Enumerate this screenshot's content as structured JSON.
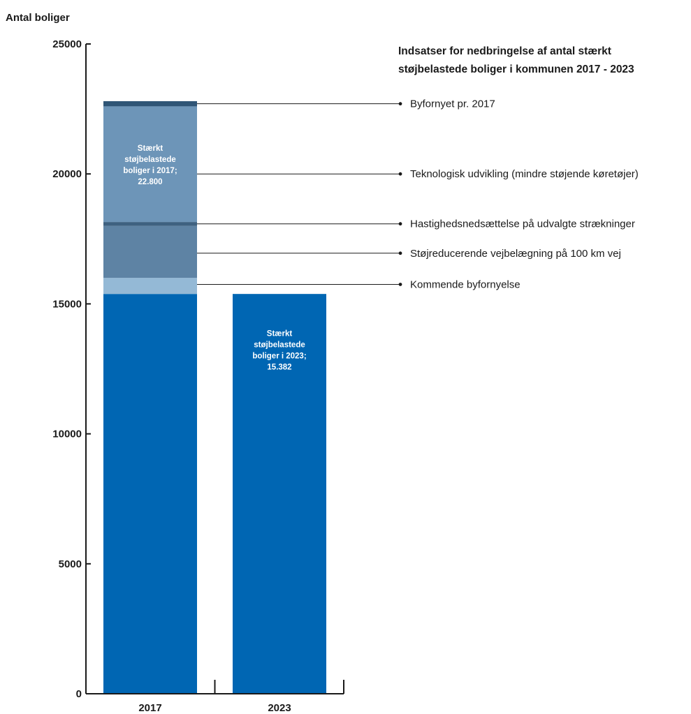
{
  "chart_data": {
    "type": "bar",
    "stacked": true,
    "title_lines": [
      "Indsatser for nedbringelse af antal stærkt",
      "støjbelastede boliger i kommunen 2017 - 2023"
    ],
    "ylabel": "Antal boliger",
    "xlabel": "",
    "ylim": [
      0,
      25000
    ],
    "yticks": [
      0,
      5000,
      10000,
      15000,
      20000,
      25000
    ],
    "categories": [
      "2017",
      "2023"
    ],
    "grid": false,
    "colors": {
      "base": "#0066b3",
      "kommende": "#94b9d6",
      "vejbelaegning": "#5e83a4",
      "hastighed": "#3e6180",
      "teknologi": "#6d95b8",
      "byfornyet": "#2f5576"
    },
    "segments": [
      {
        "key": "base",
        "values": [
          15382,
          15382
        ]
      },
      {
        "key": "kommende",
        "values": [
          618,
          0
        ]
      },
      {
        "key": "vejbelaegning",
        "values": [
          2000,
          0
        ]
      },
      {
        "key": "hastighed",
        "values": [
          150,
          0
        ]
      },
      {
        "key": "teknologi",
        "values": [
          4450,
          0
        ]
      },
      {
        "key": "byfornyet",
        "values": [
          200,
          0
        ]
      }
    ],
    "annotations": [
      {
        "label": "Byfornyet pr. 2017",
        "y": 22700
      },
      {
        "label": "Teknologisk udvikling (mindre støjende køretøjer)",
        "y": 20000
      },
      {
        "label": "Hastighedsnedsættelse på udvalgte strækninger",
        "y": 18080
      },
      {
        "label": "Støjreducerende vejbelægning på 100 km vej",
        "y": 16950
      },
      {
        "label": "Kommende byfornyelse",
        "y": 15750
      }
    ],
    "bar_labels": [
      {
        "lines": [
          "Stærkt",
          "støjbelastede",
          "boliger i 2017;",
          "22.800"
        ],
        "category": "2017",
        "center_y": 20350
      },
      {
        "lines": [
          "Stærkt",
          "støjbelastede",
          "boliger i 2023;",
          "15.382"
        ],
        "category": "2023",
        "center_y": 13230
      }
    ]
  }
}
